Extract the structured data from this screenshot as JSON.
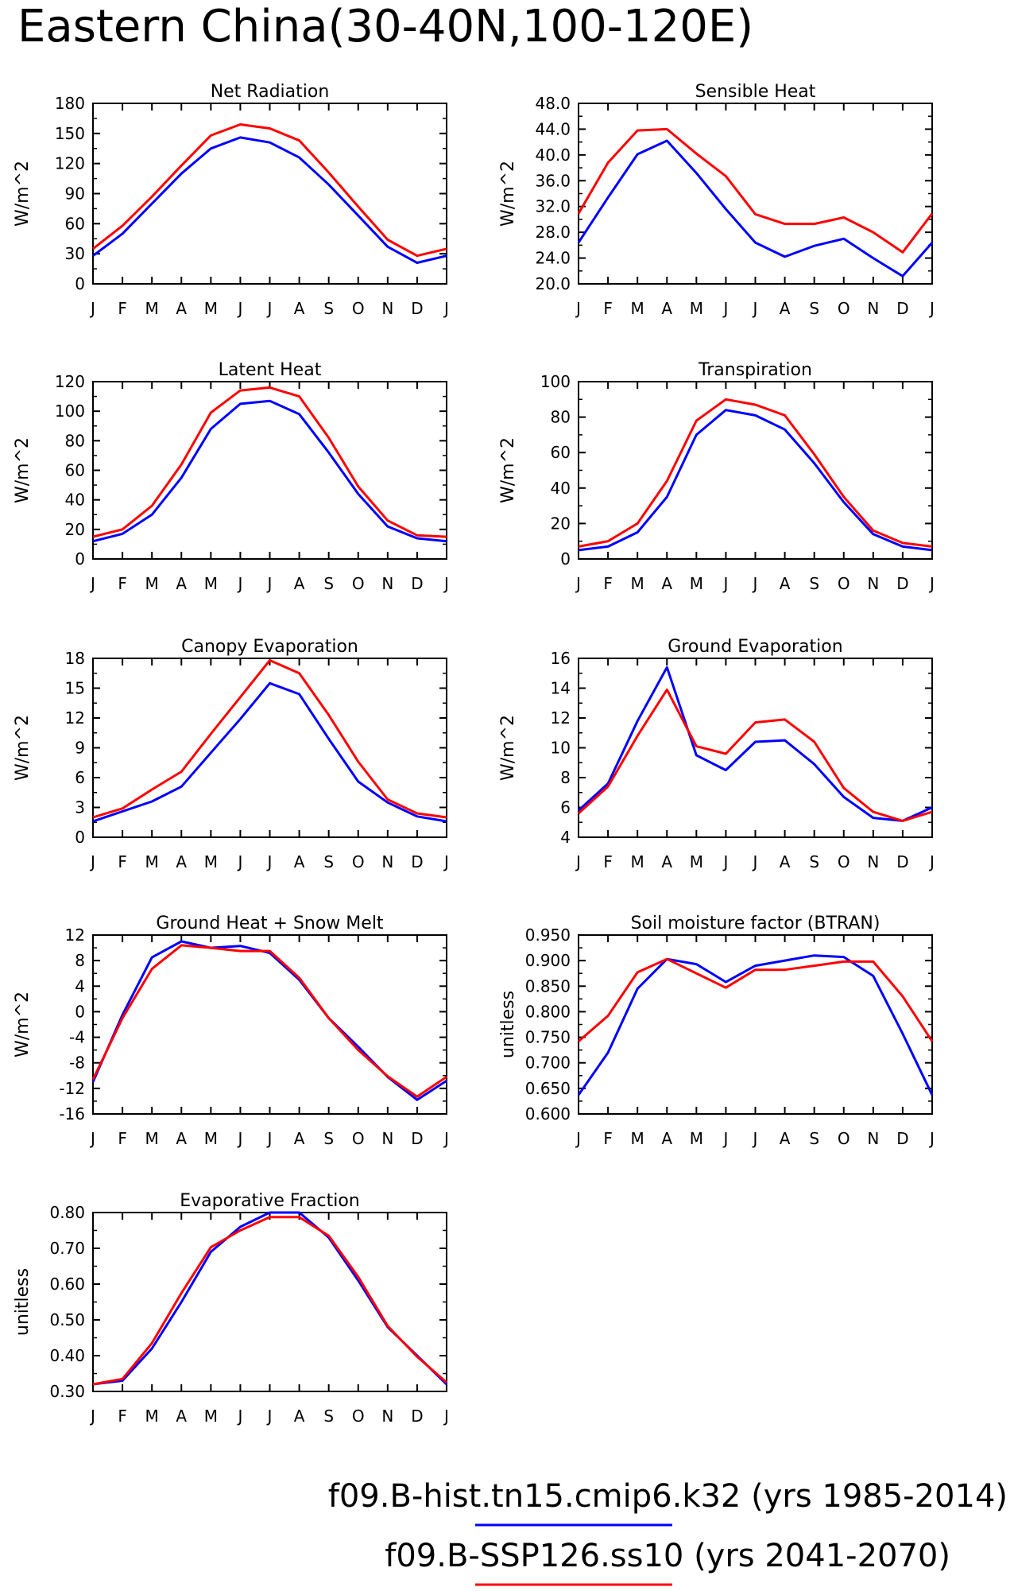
{
  "figure": {
    "title": "Eastern China(30-40N,100-120E)",
    "legend": [
      {
        "label": "f09.B-hist.tn15.cmip6.k32 (yrs 1985-2014)",
        "color": "#0000ff"
      },
      {
        "label": "f09.B-SSP126.ss10 (yrs 2041-2070)",
        "color": "#ff0000"
      }
    ]
  },
  "months": [
    "J",
    "F",
    "M",
    "A",
    "M",
    "J",
    "J",
    "A",
    "S",
    "O",
    "N",
    "D",
    "J"
  ],
  "chart_data": [
    {
      "type": "line",
      "title": "Net Radiation",
      "ylabel": "W/m^2",
      "ylim": [
        0,
        180
      ],
      "yticks": [
        "0",
        "30",
        "60",
        "90",
        "120",
        "150",
        "180"
      ],
      "series": [
        {
          "color": "#0000ff",
          "values": [
            28,
            50,
            80,
            110,
            135,
            146,
            141,
            126,
            99,
            68,
            37,
            21,
            28
          ]
        },
        {
          "color": "#ff0000",
          "values": [
            35,
            58,
            87,
            118,
            148,
            159,
            155,
            143,
            111,
            77,
            44,
            28,
            35
          ]
        }
      ]
    },
    {
      "type": "line",
      "title": "Sensible Heat",
      "ylabel": "W/m^2",
      "ylim": [
        20,
        48
      ],
      "yticks": [
        "20.0",
        "24.0",
        "28.0",
        "32.0",
        "36.0",
        "40.0",
        "44.0",
        "48.0"
      ],
      "series": [
        {
          "color": "#0000ff",
          "values": [
            26.4,
            33.4,
            40.1,
            42.2,
            37.2,
            31.6,
            26.4,
            24.2,
            25.9,
            27.0,
            24.0,
            21.2,
            26.4
          ]
        },
        {
          "color": "#ff0000",
          "values": [
            30.9,
            38.8,
            43.8,
            44.0,
            40.2,
            36.7,
            30.8,
            29.3,
            29.3,
            30.3,
            28.0,
            24.9,
            30.9
          ]
        }
      ]
    },
    {
      "type": "line",
      "title": "Latent Heat",
      "ylabel": "W/m^2",
      "ylim": [
        0,
        120
      ],
      "yticks": [
        "0",
        "20",
        "40",
        "60",
        "80",
        "100",
        "120"
      ],
      "series": [
        {
          "color": "#0000ff",
          "values": [
            12,
            17,
            30,
            55,
            88,
            105,
            107,
            98,
            72,
            44,
            22,
            14,
            12
          ]
        },
        {
          "color": "#ff0000",
          "values": [
            15,
            20,
            36,
            64,
            99,
            114,
            116,
            110,
            82,
            49,
            26,
            16,
            15
          ]
        }
      ]
    },
    {
      "type": "line",
      "title": "Transpiration",
      "ylabel": "W/m^2",
      "ylim": [
        0,
        100
      ],
      "yticks": [
        "0",
        "20",
        "40",
        "60",
        "80",
        "100"
      ],
      "series": [
        {
          "color": "#0000ff",
          "values": [
            5,
            7,
            15,
            35,
            70,
            84,
            81,
            73,
            54,
            32,
            14,
            7,
            5
          ]
        },
        {
          "color": "#ff0000",
          "values": [
            7,
            10,
            20,
            44,
            78,
            90,
            87,
            81,
            59,
            35,
            16,
            9,
            7
          ]
        }
      ]
    },
    {
      "type": "line",
      "title": "Canopy Evaporation",
      "ylabel": "W/m^2",
      "ylim": [
        0,
        18
      ],
      "yticks": [
        "0",
        "3",
        "6",
        "9",
        "12",
        "15",
        "18"
      ],
      "series": [
        {
          "color": "#0000ff",
          "values": [
            1.6,
            2.6,
            3.6,
            5.1,
            8.5,
            11.9,
            15.5,
            14.4,
            9.9,
            5.6,
            3.5,
            2.1,
            1.6
          ]
        },
        {
          "color": "#ff0000",
          "values": [
            2.0,
            2.9,
            4.8,
            6.6,
            10.4,
            14.1,
            17.8,
            16.5,
            12.3,
            7.6,
            3.8,
            2.4,
            2.0
          ]
        }
      ]
    },
    {
      "type": "line",
      "title": "Ground Evaporation",
      "ylabel": "W/m^2",
      "ylim": [
        4,
        16
      ],
      "yticks": [
        "4",
        "6",
        "8",
        "10",
        "12",
        "14",
        "16"
      ],
      "series": [
        {
          "color": "#0000ff",
          "values": [
            5.8,
            7.6,
            11.8,
            15.4,
            9.5,
            8.5,
            10.4,
            10.5,
            8.9,
            6.7,
            5.3,
            5.1,
            6.0
          ]
        },
        {
          "color": "#ff0000",
          "values": [
            5.6,
            7.4,
            10.8,
            13.9,
            10.1,
            9.6,
            11.7,
            11.9,
            10.4,
            7.3,
            5.7,
            5.1,
            5.7
          ]
        }
      ]
    },
    {
      "type": "line",
      "title": "Ground Heat + Snow Melt",
      "ylabel": "W/m^2",
      "ylim": [
        -16,
        12
      ],
      "yticks": [
        "-16",
        "-12",
        "-8",
        "-4",
        "0",
        "4",
        "8",
        "12"
      ],
      "series": [
        {
          "color": "#0000ff",
          "values": [
            -11.0,
            -0.5,
            8.5,
            11.0,
            10.0,
            10.3,
            9.2,
            5.0,
            -1.0,
            -5.5,
            -10.2,
            -13.8,
            -10.8
          ]
        },
        {
          "color": "#ff0000",
          "values": [
            -10.6,
            -1.0,
            6.7,
            10.4,
            10.0,
            9.5,
            9.5,
            5.3,
            -1.0,
            -6.0,
            -10.1,
            -13.3,
            -10.2
          ]
        }
      ]
    },
    {
      "type": "line",
      "title": "Soil moisture factor (BTRAN)",
      "ylabel": "unitless",
      "ylim": [
        0.6,
        0.95
      ],
      "yticks": [
        "0.600",
        "0.650",
        "0.700",
        "0.750",
        "0.800",
        "0.850",
        "0.900",
        "0.950"
      ],
      "series": [
        {
          "color": "#0000ff",
          "values": [
            0.637,
            0.72,
            0.845,
            0.903,
            0.893,
            0.858,
            0.89,
            0.9,
            0.91,
            0.907,
            0.87,
            0.757,
            0.637
          ]
        },
        {
          "color": "#ff0000",
          "values": [
            0.742,
            0.792,
            0.877,
            0.903,
            0.875,
            0.847,
            0.882,
            0.882,
            0.89,
            0.898,
            0.898,
            0.83,
            0.742
          ]
        }
      ]
    },
    {
      "type": "line",
      "title": "Evaporative Fraction",
      "ylabel": "unitless",
      "ylim": [
        0.3,
        0.8
      ],
      "yticks": [
        "0.30",
        "0.40",
        "0.50",
        "0.60",
        "0.70",
        "0.80"
      ],
      "series": [
        {
          "color": "#0000ff",
          "values": [
            0.32,
            0.33,
            0.42,
            0.55,
            0.69,
            0.76,
            0.8,
            0.8,
            0.73,
            0.61,
            0.48,
            0.4,
            0.32
          ]
        },
        {
          "color": "#ff0000",
          "values": [
            0.32,
            0.335,
            0.435,
            0.575,
            0.703,
            0.75,
            0.787,
            0.787,
            0.735,
            0.62,
            0.483,
            0.397,
            0.325
          ]
        }
      ]
    }
  ]
}
